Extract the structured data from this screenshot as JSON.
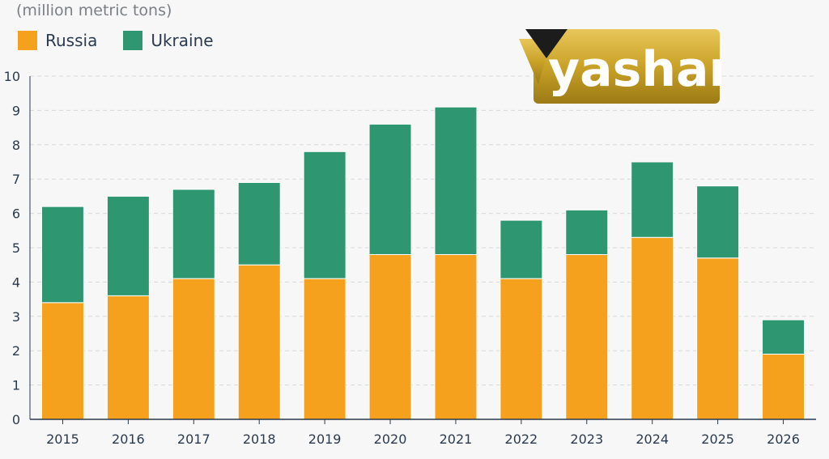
{
  "chart_data": {
    "type": "bar",
    "stacked": true,
    "unit_label": "(million metric tons)",
    "categories": [
      "2015",
      "2016",
      "2017",
      "2018",
      "2019",
      "2020",
      "2021",
      "2022",
      "2023",
      "2024",
      "2025",
      "2026"
    ],
    "series": [
      {
        "name": "Russia",
        "color": "#f5a11d",
        "values": [
          3.4,
          3.6,
          4.1,
          4.5,
          4.1,
          4.8,
          4.8,
          4.1,
          4.8,
          5.3,
          4.7,
          1.9
        ]
      },
      {
        "name": "Ukraine",
        "color": "#2f9672",
        "values": [
          2.8,
          2.9,
          2.6,
          2.4,
          3.7,
          3.8,
          4.3,
          1.7,
          1.3,
          2.2,
          2.1,
          1.0
        ]
      }
    ],
    "ylim": [
      0,
      10
    ],
    "yticks": [
      0,
      1,
      2,
      3,
      4,
      5,
      6,
      7,
      8,
      9,
      10
    ],
    "grid": true,
    "legend_position": "top-left"
  },
  "logo": {
    "text": "yashar",
    "colors": {
      "gold": "#c9a227",
      "dark": "#1c1c1c"
    }
  }
}
